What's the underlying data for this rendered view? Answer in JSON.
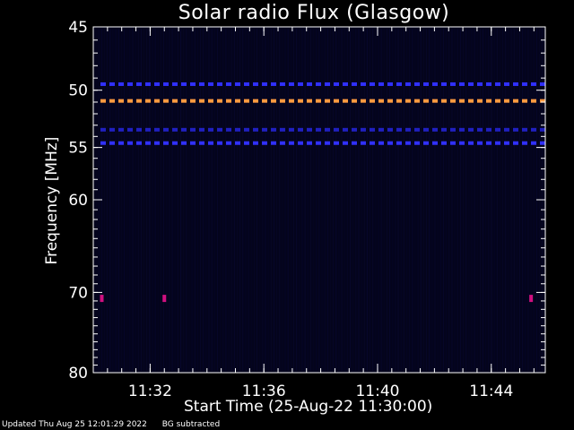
{
  "chart_data": {
    "type": "heatmap",
    "title": "Solar radio Flux (Glasgow)",
    "xlabel": "Start Time (25-Aug-22 11:30:00)",
    "ylabel": "Frequency [MHz]",
    "y_axis_scale": "log",
    "ylim": [
      45,
      80
    ],
    "y_tick_labels": [
      {
        "value": 45,
        "label": "45"
      },
      {
        "value": 50,
        "label": "50"
      },
      {
        "value": 55,
        "label": "55"
      },
      {
        "value": 60,
        "label": "60"
      },
      {
        "value": 70,
        "label": "70"
      },
      {
        "value": 80,
        "label": "80"
      }
    ],
    "xlim_minutes_after_start": [
      0,
      15.9
    ],
    "x_tick_labels": [
      {
        "minute": 2,
        "label": "11:32"
      },
      {
        "minute": 6,
        "label": "11:36"
      },
      {
        "minute": 10,
        "label": "11:40"
      },
      {
        "minute": 14,
        "label": "11:44"
      }
    ],
    "background_color": "#04041c",
    "emission_bands": [
      {
        "freq_mhz": 49.5,
        "color": "#3030ff",
        "style": "dashed"
      },
      {
        "freq_mhz": 50.9,
        "color": "#ff9a40",
        "style": "dashed"
      },
      {
        "freq_mhz": 53.4,
        "color": "#2020c0",
        "style": "dashed"
      },
      {
        "freq_mhz": 54.6,
        "color": "#3030ff",
        "style": "dashed"
      }
    ],
    "hot_spots": [
      {
        "minute": 0.3,
        "freq_mhz": 70.7,
        "color": "#d01080"
      },
      {
        "minute": 2.5,
        "freq_mhz": 70.7,
        "color": "#d01080"
      },
      {
        "minute": 15.4,
        "freq_mhz": 70.7,
        "color": "#d01080"
      }
    ]
  },
  "footer": {
    "updated": "Updated Thu Aug 25 12:01:29 2022",
    "note": "BG subtracted"
  }
}
